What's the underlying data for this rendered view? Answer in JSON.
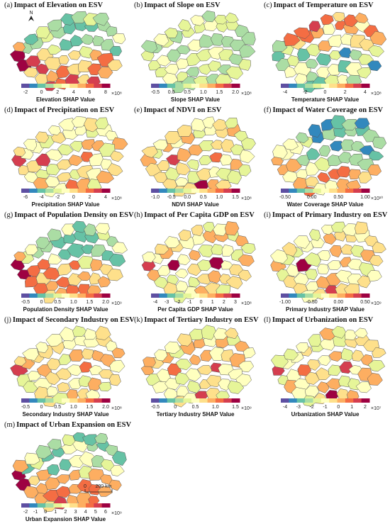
{
  "panels": [
    {
      "letter": "(a)",
      "title": "Impact of Elevation on ESV",
      "cbar_label": "Elevation SHAP Value",
      "ticks": [
        "-2",
        "0",
        "2",
        "4",
        "6",
        "8"
      ],
      "exp": "×10⁸",
      "north": true
    },
    {
      "letter": "(b)",
      "title": "Impact of Slope on ESV",
      "cbar_label": "Slope SHAP Value",
      "ticks": [
        "-0.5",
        "0.0",
        "0.5",
        "1.0",
        "1.5",
        "2.0"
      ],
      "exp": "×10⁸"
    },
    {
      "letter": "(c)",
      "title": "Impact of Temperature on ESV",
      "cbar_label": "Temperature SHAP Value",
      "ticks": [
        "-4",
        "-2",
        "0",
        "2",
        "4"
      ],
      "exp": "×10⁸"
    },
    {
      "letter": "(d)",
      "title": "Impact of Precipitation on ESV",
      "cbar_label": "Precipitation SHAP Value",
      "ticks": [
        "-6",
        "-4",
        "-2",
        "0",
        "2",
        "4"
      ],
      "exp": "×10⁸"
    },
    {
      "letter": "(e)",
      "title": "Impact of NDVI on ESV",
      "cbar_label": "NDVI SHAP Value",
      "ticks": [
        "-1.0",
        "-0.5",
        "0.0",
        "0.5",
        "1.0",
        "1.5"
      ],
      "exp": "×10⁸"
    },
    {
      "letter": "(f)",
      "title": "Impact of Water Coverage on ESV",
      "cbar_label": "Water Coverage SHAP Value",
      "ticks": [
        "-0.50",
        "0.00",
        "0.50",
        "1.00"
      ],
      "exp": "×10¹⁰"
    },
    {
      "letter": "(g)",
      "title": "Impact of Population Density on ESV",
      "cbar_label": "Population Density SHAP Value",
      "ticks": [
        "-0.5",
        "0",
        "0.5",
        "1.0",
        "1.5",
        "2.0"
      ],
      "exp": "×10⁹"
    },
    {
      "letter": "(h)",
      "title": "Impact of Per Capita GDP on ESV",
      "cbar_label": "Per Capita GDP SHAP Value",
      "ticks": [
        "-4",
        "-3",
        "-2",
        "-1",
        "0",
        "1",
        "2",
        "3"
      ],
      "exp": "×10⁸"
    },
    {
      "letter": "(i)",
      "title": "Impact of Primary Industry on ESV",
      "cbar_label": "Primary Industry SHAP Value",
      "ticks": [
        "-1.00",
        "-0.50",
        "0.00",
        "0.50"
      ],
      "exp": "×10⁹"
    },
    {
      "letter": "(j)",
      "title": "Impact of Secondary Industry on ESV",
      "cbar_label": "Secondary Industry SHAP Value",
      "ticks": [
        "-0.5",
        "0",
        "0.5",
        "1.0",
        "1.5",
        "2.0"
      ],
      "exp": "×10⁸"
    },
    {
      "letter": "(k)",
      "title": "Impact of Tertiary Industry on ESV",
      "cbar_label": "Tertiary Industry SHAP Value",
      "ticks": [
        "-0.5",
        "0",
        "0.5",
        "1.0",
        "1.5"
      ],
      "exp": "×10⁹"
    },
    {
      "letter": "(l)",
      "title": "Impact of Urbanization on ESV",
      "cbar_label": "Urbanization SHAP Value",
      "ticks": [
        "-4",
        "-3",
        "-2",
        "-1",
        "0",
        "1",
        "2"
      ],
      "exp": "×10⁷"
    },
    {
      "letter": "(m)",
      "title": "Impact of Urban Expansion on ESV",
      "cbar_label": "Urban Expansion SHAP Value",
      "ticks": [
        "-2",
        "-1",
        "0",
        "1",
        "2",
        "3",
        "4",
        "5",
        "6"
      ],
      "exp": "×10⁹",
      "scale": true
    }
  ],
  "north_label": "N",
  "scale_labels": {
    "zero": "0",
    "dist": "200 km"
  },
  "colormap": [
    "#5e4fa2",
    "#3288bd",
    "#66c2a5",
    "#abdda4",
    "#e6f598",
    "#ffffbf",
    "#fee08b",
    "#fdae61",
    "#f46d43",
    "#d53e4f",
    "#9e0142"
  ]
}
